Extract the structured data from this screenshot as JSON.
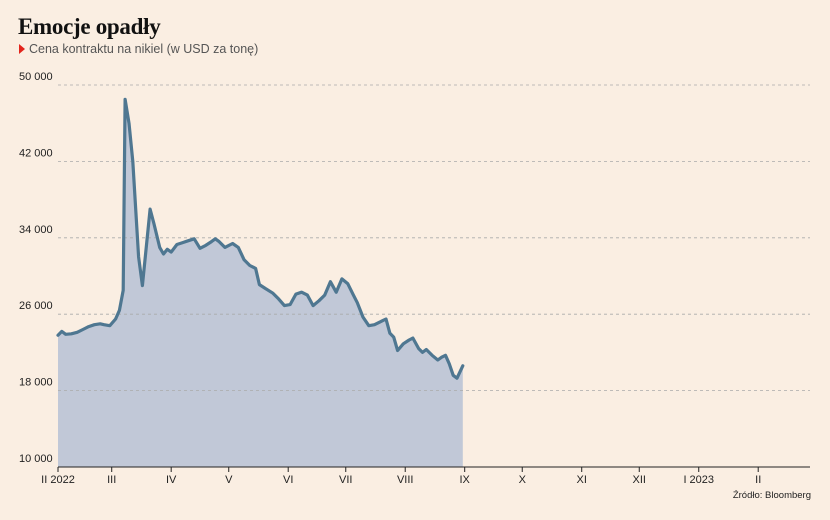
{
  "header": {
    "title": "Emocje opadły",
    "subtitle": "Cena kontraktu na nikiel (w USD za tonę)"
  },
  "source": "Źródło: Bloomberg",
  "colors": {
    "background": "#faeee2",
    "line": "#4f7791",
    "area": "#c1c8d7",
    "grid": "#aaaaaa",
    "marker": "#e3241b"
  },
  "chart_data": {
    "type": "area",
    "title": "Emocje opadły",
    "subtitle": "Cena kontraktu na nikiel (w USD za tonę)",
    "xlabel": "",
    "ylabel": "",
    "ylim": [
      10000,
      50000
    ],
    "yticks": [
      10000,
      18000,
      26000,
      34000,
      42000,
      50000
    ],
    "ytick_labels": [
      "10 000",
      "18 000",
      "26 000",
      "34 000",
      "42 000",
      "50 000"
    ],
    "xlim": [
      "2022-02-01",
      "2023-02-28"
    ],
    "xticks": [
      {
        "label": "II 2022",
        "date": "2022-02-01"
      },
      {
        "label": "III",
        "date": "2022-03-01"
      },
      {
        "label": "IV",
        "date": "2022-04-01"
      },
      {
        "label": "V",
        "date": "2022-05-01"
      },
      {
        "label": "VI",
        "date": "2022-06-01"
      },
      {
        "label": "VII",
        "date": "2022-07-01"
      },
      {
        "label": "VIII",
        "date": "2022-08-01"
      },
      {
        "label": "IX",
        "date": "2022-09-01"
      },
      {
        "label": "X",
        "date": "2022-10-01"
      },
      {
        "label": "XI",
        "date": "2022-11-01"
      },
      {
        "label": "XII",
        "date": "2022-12-01"
      },
      {
        "label": "I 2023",
        "date": "2023-01-01"
      },
      {
        "label": "II",
        "date": "2023-02-01"
      }
    ],
    "grid": "horizontal dashed",
    "legend": "none",
    "series": [
      {
        "points": [
          [
            "2022-02-01",
            23800
          ],
          [
            "2022-02-03",
            24200
          ],
          [
            "2022-02-05",
            23900
          ],
          [
            "2022-02-08",
            23950
          ],
          [
            "2022-02-11",
            24100
          ],
          [
            "2022-02-14",
            24400
          ],
          [
            "2022-02-17",
            24700
          ],
          [
            "2022-02-20",
            24900
          ],
          [
            "2022-02-23",
            25000
          ],
          [
            "2022-02-25",
            24900
          ],
          [
            "2022-02-28",
            24800
          ],
          [
            "2022-03-03",
            25500
          ],
          [
            "2022-03-05",
            26400
          ],
          [
            "2022-03-07",
            28500
          ],
          [
            "2022-03-08",
            48500
          ],
          [
            "2022-03-10",
            46000
          ],
          [
            "2022-03-12",
            42000
          ],
          [
            "2022-03-15",
            32000
          ],
          [
            "2022-03-17",
            29000
          ],
          [
            "2022-03-21",
            37000
          ],
          [
            "2022-03-23",
            35500
          ],
          [
            "2022-03-26",
            33000
          ],
          [
            "2022-03-28",
            32300
          ],
          [
            "2022-03-30",
            32800
          ],
          [
            "2022-04-01",
            32500
          ],
          [
            "2022-04-04",
            33300
          ],
          [
            "2022-04-07",
            33500
          ],
          [
            "2022-04-10",
            33700
          ],
          [
            "2022-04-13",
            33900
          ],
          [
            "2022-04-16",
            32900
          ],
          [
            "2022-04-19",
            33200
          ],
          [
            "2022-04-22",
            33600
          ],
          [
            "2022-04-24",
            33900
          ],
          [
            "2022-04-26",
            33600
          ],
          [
            "2022-04-29",
            33000
          ],
          [
            "2022-05-03",
            33400
          ],
          [
            "2022-05-06",
            33000
          ],
          [
            "2022-05-09",
            31700
          ],
          [
            "2022-05-12",
            31100
          ],
          [
            "2022-05-15",
            30800
          ],
          [
            "2022-05-17",
            29100
          ],
          [
            "2022-05-20",
            28700
          ],
          [
            "2022-05-24",
            28200
          ],
          [
            "2022-05-27",
            27600
          ],
          [
            "2022-05-30",
            26900
          ],
          [
            "2022-06-02",
            27000
          ],
          [
            "2022-06-05",
            28100
          ],
          [
            "2022-06-08",
            28300
          ],
          [
            "2022-06-11",
            28000
          ],
          [
            "2022-06-14",
            26900
          ],
          [
            "2022-06-17",
            27400
          ],
          [
            "2022-06-20",
            28000
          ],
          [
            "2022-06-23",
            29400
          ],
          [
            "2022-06-26",
            28300
          ],
          [
            "2022-06-29",
            29700
          ],
          [
            "2022-07-02",
            29200
          ],
          [
            "2022-07-05",
            28000
          ],
          [
            "2022-07-07",
            27200
          ],
          [
            "2022-07-10",
            25700
          ],
          [
            "2022-07-13",
            24800
          ],
          [
            "2022-07-16",
            24900
          ],
          [
            "2022-07-19",
            25200
          ],
          [
            "2022-07-22",
            25500
          ],
          [
            "2022-07-24",
            24000
          ],
          [
            "2022-07-26",
            23600
          ],
          [
            "2022-07-28",
            22200
          ],
          [
            "2022-07-31",
            22900
          ],
          [
            "2022-08-03",
            23300
          ],
          [
            "2022-08-05",
            23500
          ],
          [
            "2022-08-08",
            22400
          ],
          [
            "2022-08-10",
            22000
          ],
          [
            "2022-08-12",
            22300
          ],
          [
            "2022-08-15",
            21700
          ],
          [
            "2022-08-18",
            21200
          ],
          [
            "2022-08-20",
            21500
          ],
          [
            "2022-08-22",
            21700
          ],
          [
            "2022-08-24",
            20800
          ],
          [
            "2022-08-26",
            19600
          ],
          [
            "2022-08-28",
            19300
          ],
          [
            "2022-08-31",
            20600
          ]
        ]
      }
    ]
  }
}
